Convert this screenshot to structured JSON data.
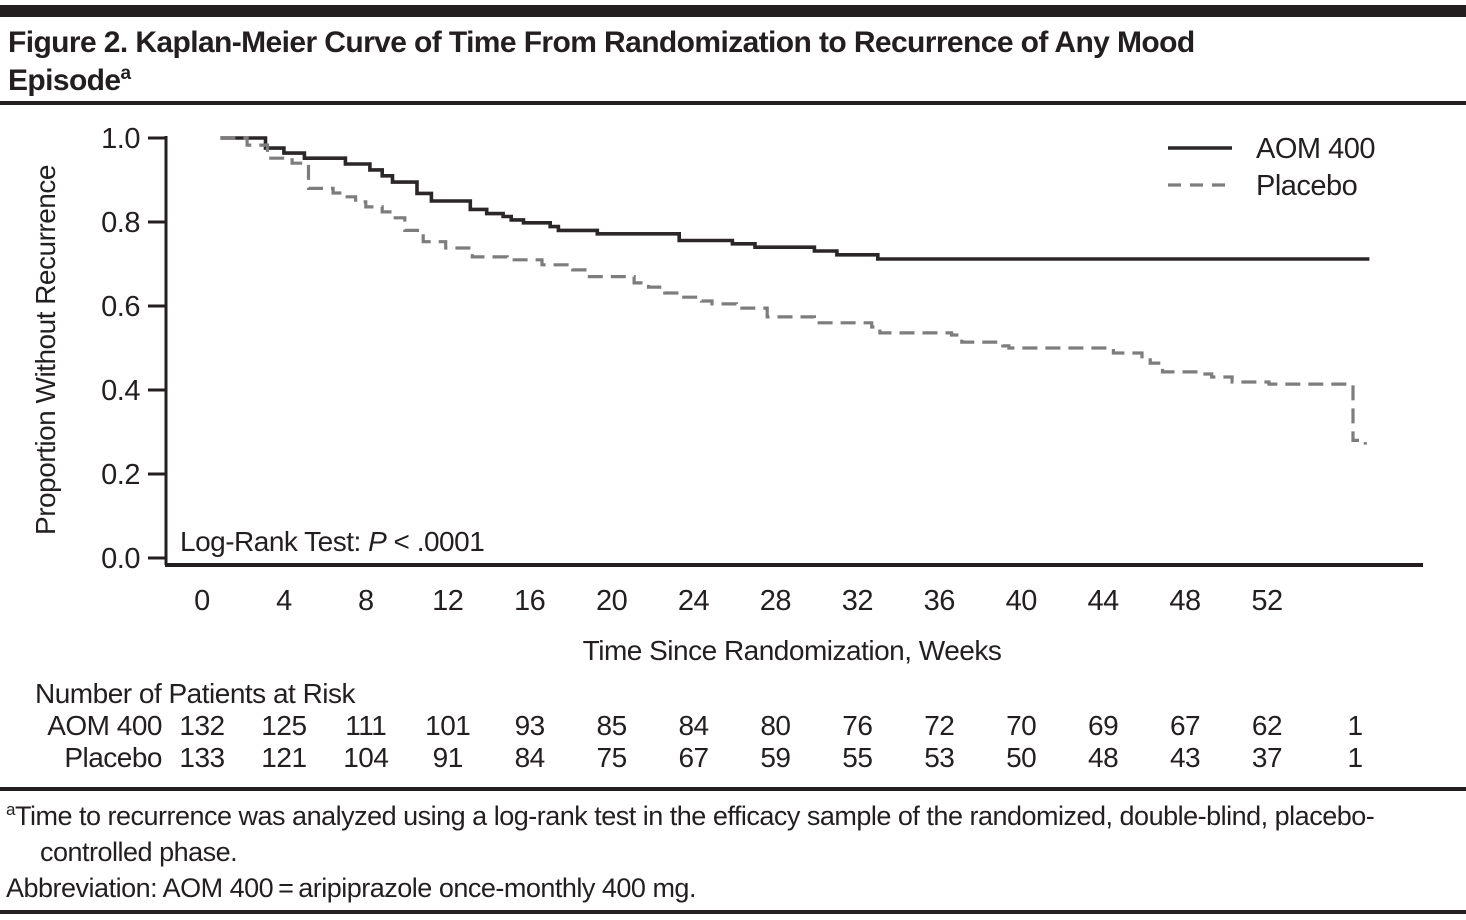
{
  "figure": {
    "title_lines": [
      "Figure 2. Kaplan-Meier Curve of Time From Randomization to Recurrence of Any Mood",
      "Episode"
    ],
    "title_superscript": "a"
  },
  "footnotes": {
    "note_superscript": "a",
    "note_text": "Time to recurrence was analyzed using a log-rank test in the efficacy sample of the randomized, double-blind, placebo-controlled phase.",
    "abbreviation_text": "Abbreviation: AOM 400 = aripiprazole once-monthly 400 mg."
  },
  "chart_data": {
    "type": "line",
    "subtype": "kaplan_meier_step",
    "xlabel": "Time Since Randomization, Weeks",
    "ylabel": "Proportion Without Recurrence",
    "xlim": [
      0,
      58
    ],
    "ylim": [
      0.0,
      1.0
    ],
    "x_ticks": [
      0,
      4,
      8,
      12,
      16,
      20,
      24,
      28,
      32,
      36,
      40,
      44,
      48,
      52
    ],
    "y_ticks": [
      0.0,
      0.2,
      0.4,
      0.6,
      0.8,
      1.0
    ],
    "grid": false,
    "legend_position": "top-right",
    "annotation": {
      "prefix": "Log-Rank Test: ",
      "italic": "P",
      "suffix": " < .0001"
    },
    "colors": {
      "aom": "#2b2728",
      "placebo": "#7d7d7d",
      "axis": "#231f20"
    },
    "series": [
      {
        "name": "AOM 400",
        "style": "solid",
        "color": "#2b2728",
        "points": [
          [
            0.9,
            1.0
          ],
          [
            3.1,
            0.976
          ],
          [
            4.0,
            0.964
          ],
          [
            5.0,
            0.952
          ],
          [
            7.0,
            0.938
          ],
          [
            8.2,
            0.924
          ],
          [
            8.8,
            0.91
          ],
          [
            9.3,
            0.895
          ],
          [
            10.5,
            0.868
          ],
          [
            11.2,
            0.85
          ],
          [
            13.1,
            0.83
          ],
          [
            13.9,
            0.82
          ],
          [
            14.7,
            0.813
          ],
          [
            15.1,
            0.805
          ],
          [
            15.7,
            0.798
          ],
          [
            17.0,
            0.789
          ],
          [
            17.4,
            0.78
          ],
          [
            19.3,
            0.772
          ],
          [
            23.3,
            0.756
          ],
          [
            25.9,
            0.748
          ],
          [
            27.0,
            0.74
          ],
          [
            29.9,
            0.731
          ],
          [
            31.0,
            0.722
          ],
          [
            33.0,
            0.712
          ],
          [
            57.0,
            0.712
          ]
        ]
      },
      {
        "name": "Placebo",
        "style": "dashed",
        "color": "#7d7d7d",
        "points": [
          [
            0.9,
            1.0
          ],
          [
            2.2,
            0.983
          ],
          [
            3.2,
            0.952
          ],
          [
            4.4,
            0.94
          ],
          [
            5.2,
            0.88
          ],
          [
            6.4,
            0.869
          ],
          [
            6.9,
            0.86
          ],
          [
            7.5,
            0.848
          ],
          [
            8.0,
            0.836
          ],
          [
            8.8,
            0.824
          ],
          [
            9.3,
            0.81
          ],
          [
            9.9,
            0.78
          ],
          [
            10.8,
            0.753
          ],
          [
            11.9,
            0.738
          ],
          [
            13.2,
            0.717
          ],
          [
            14.9,
            0.71
          ],
          [
            16.6,
            0.698
          ],
          [
            18.1,
            0.686
          ],
          [
            18.8,
            0.67
          ],
          [
            21.1,
            0.655
          ],
          [
            21.8,
            0.645
          ],
          [
            22.6,
            0.631
          ],
          [
            23.3,
            0.621
          ],
          [
            24.4,
            0.612
          ],
          [
            24.9,
            0.605
          ],
          [
            26.1,
            0.595
          ],
          [
            27.6,
            0.574
          ],
          [
            29.9,
            0.56
          ],
          [
            32.7,
            0.55
          ],
          [
            33.1,
            0.536
          ],
          [
            36.6,
            0.531
          ],
          [
            37.1,
            0.514
          ],
          [
            39.1,
            0.505
          ],
          [
            39.4,
            0.5
          ],
          [
            44.5,
            0.488
          ],
          [
            45.9,
            0.479
          ],
          [
            46.3,
            0.464
          ],
          [
            46.9,
            0.443
          ],
          [
            48.8,
            0.438
          ],
          [
            49.3,
            0.431
          ],
          [
            50.3,
            0.419
          ],
          [
            52.1,
            0.414
          ],
          [
            56.2,
            0.28
          ],
          [
            56.8,
            0.27
          ]
        ]
      }
    ],
    "risk_table": {
      "title": "Number of Patients at Risk",
      "time_weeks": [
        0,
        4,
        8,
        12,
        16,
        20,
        24,
        28,
        32,
        36,
        40,
        44,
        48,
        52,
        56.3
      ],
      "rows": [
        {
          "label": "AOM 400",
          "values": [
            "132",
            "125",
            "111",
            "101",
            "93",
            "85",
            "84",
            "80",
            "76",
            "72",
            "70",
            "69",
            "67",
            "62",
            "1"
          ]
        },
        {
          "label": "Placebo",
          "values": [
            "133",
            "121",
            "104",
            "91",
            "84",
            "75",
            "67",
            "59",
            "55",
            "53",
            "50",
            "48",
            "43",
            "37",
            "1"
          ]
        }
      ]
    }
  }
}
